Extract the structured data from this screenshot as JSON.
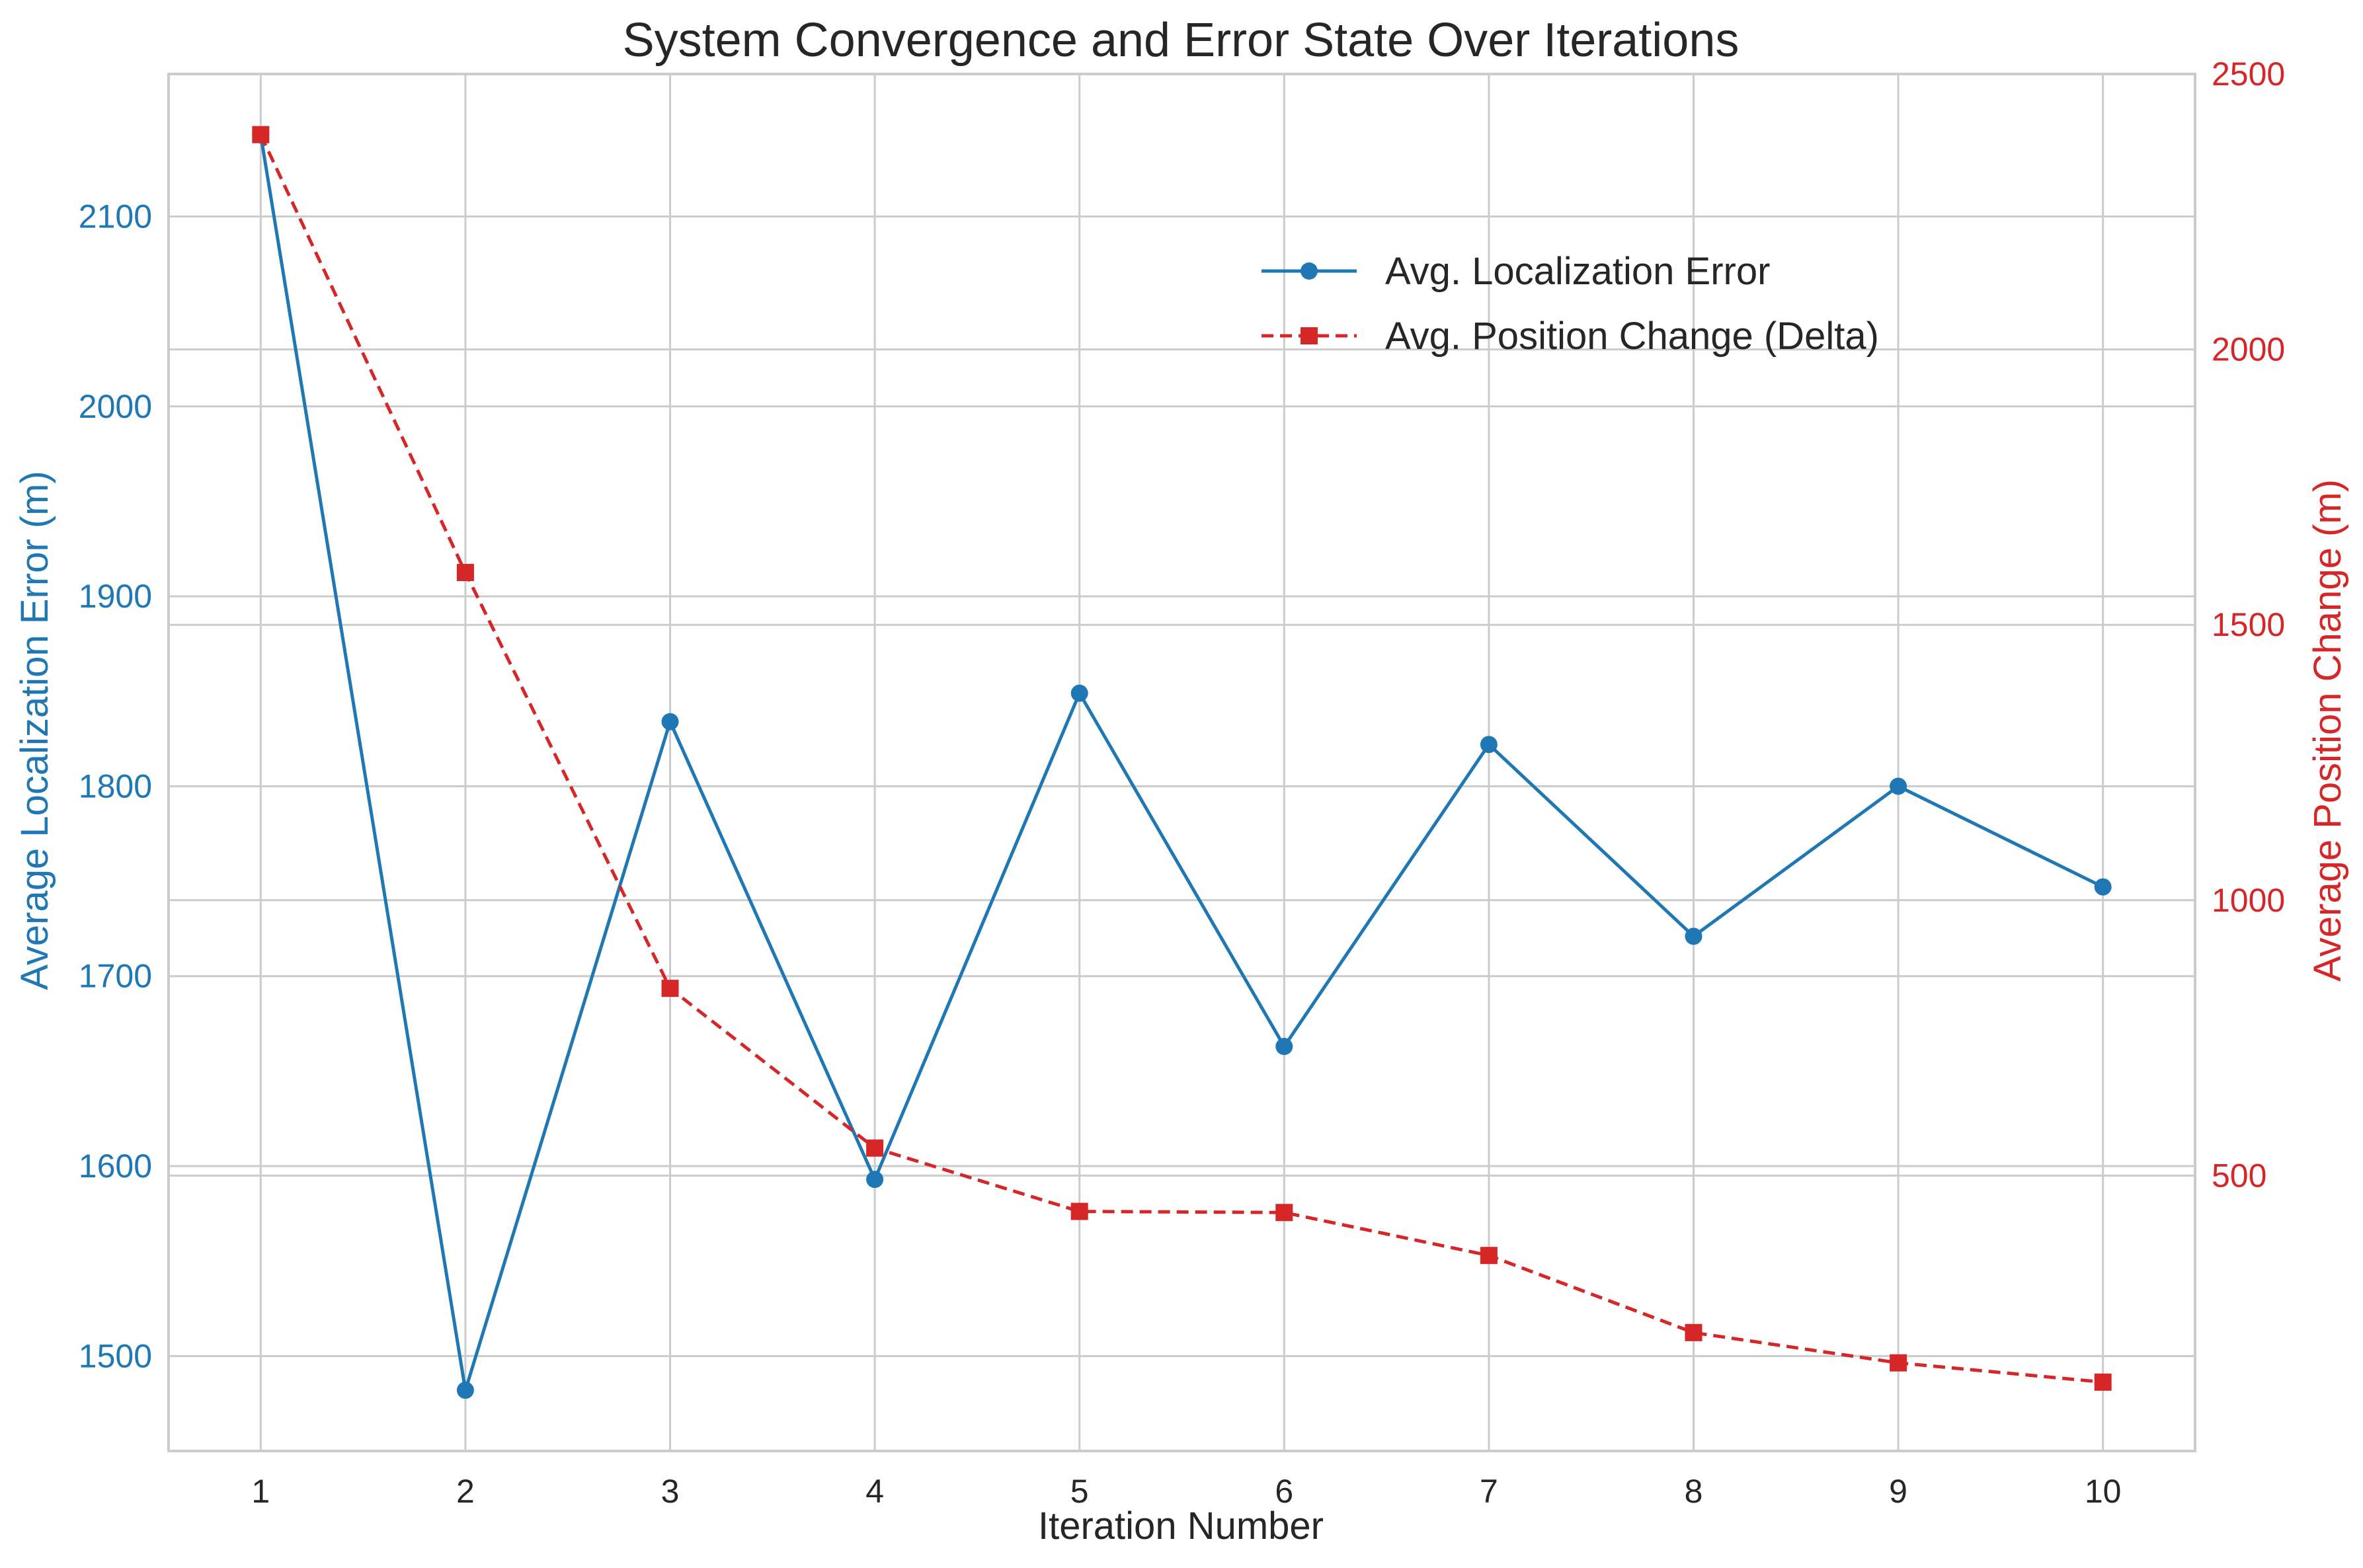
{
  "chart_data": {
    "type": "line",
    "title": "System Convergence and Error State Over Iterations",
    "xlabel": "Iteration Number",
    "x": [
      1,
      2,
      3,
      4,
      5,
      6,
      7,
      8,
      9,
      10
    ],
    "xticks": [
      "1",
      "2",
      "3",
      "4",
      "5",
      "6",
      "7",
      "8",
      "9",
      "10"
    ],
    "xlim": [
      0.55,
      10.45
    ],
    "grid": true,
    "legend_position": "upper right",
    "left_axis": {
      "label": "Average Localization Error (m)",
      "color": "#1f77b4",
      "ylim": [
        1450,
        2175
      ],
      "ticks": [
        1500,
        1600,
        1700,
        1800,
        1900,
        2000,
        2100
      ]
    },
    "right_axis": {
      "label": "Average Position Change (m)",
      "color": "#d62728",
      "ylim": [
        0,
        2500
      ],
      "ticks": [
        500,
        1000,
        1500,
        2000,
        2500
      ]
    },
    "series": [
      {
        "name": "Avg. Localization Error",
        "axis": "left",
        "color": "#1f77b4",
        "line_style": "solid",
        "marker": "circle",
        "values": [
          2143,
          1482,
          1834,
          1593,
          1849,
          1663,
          1822,
          1721,
          1800,
          1747
        ]
      },
      {
        "name": "Avg. Position Change (Delta)",
        "axis": "right",
        "color": "#d62728",
        "line_style": "dashed",
        "marker": "square",
        "values": [
          2390,
          1595,
          840,
          550,
          435,
          433,
          355,
          215,
          160,
          125
        ]
      }
    ]
  }
}
